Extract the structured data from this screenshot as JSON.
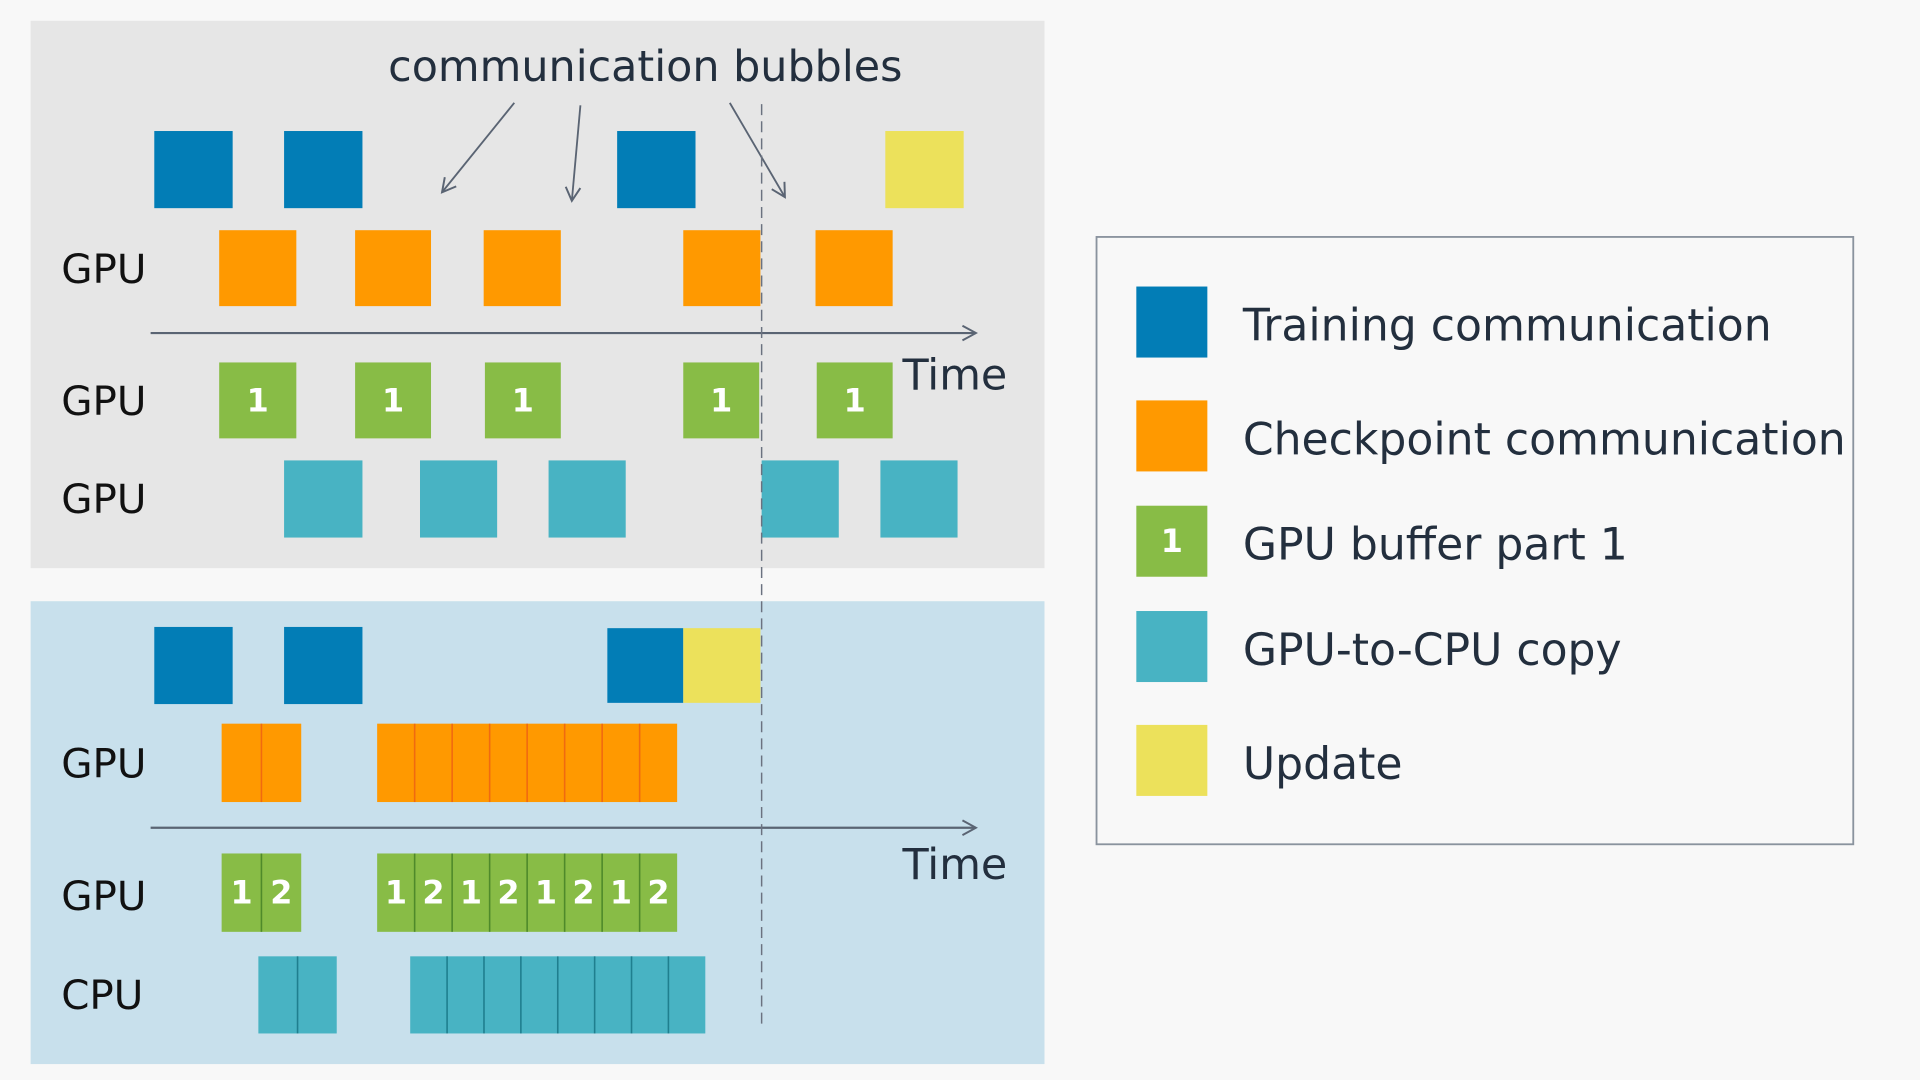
{
  "title": "communication bubbles",
  "axis_label": "Time",
  "top_panel": {
    "row_labels": [
      "GPU",
      "GPU",
      "GPU"
    ]
  },
  "bottom_panel": {
    "row_labels": [
      "GPU",
      "GPU",
      "CPU"
    ]
  },
  "buffer_labels": [
    "1",
    "2"
  ],
  "legend": {
    "items": [
      {
        "label": "Training communication",
        "color": "#027DB6",
        "badge": ""
      },
      {
        "label": "Checkpoint communication",
        "color": "#FF9900",
        "badge": ""
      },
      {
        "label": "GPU buffer part 1",
        "color": "#88BC46",
        "badge": "1"
      },
      {
        "label": "GPU-to-CPU copy",
        "color": "#48B3C3",
        "badge": ""
      },
      {
        "label": "Update",
        "color": "#ECE15B",
        "badge": ""
      }
    ]
  },
  "colors": {
    "training": "#027DB6",
    "checkpoint": "#FF9900",
    "buffer": "#88BC46",
    "copy": "#48B3C3",
    "update": "#ECE15B",
    "top_panel_bg": "#E6E6E6",
    "bottom_panel_bg": "#C8E0EC"
  }
}
